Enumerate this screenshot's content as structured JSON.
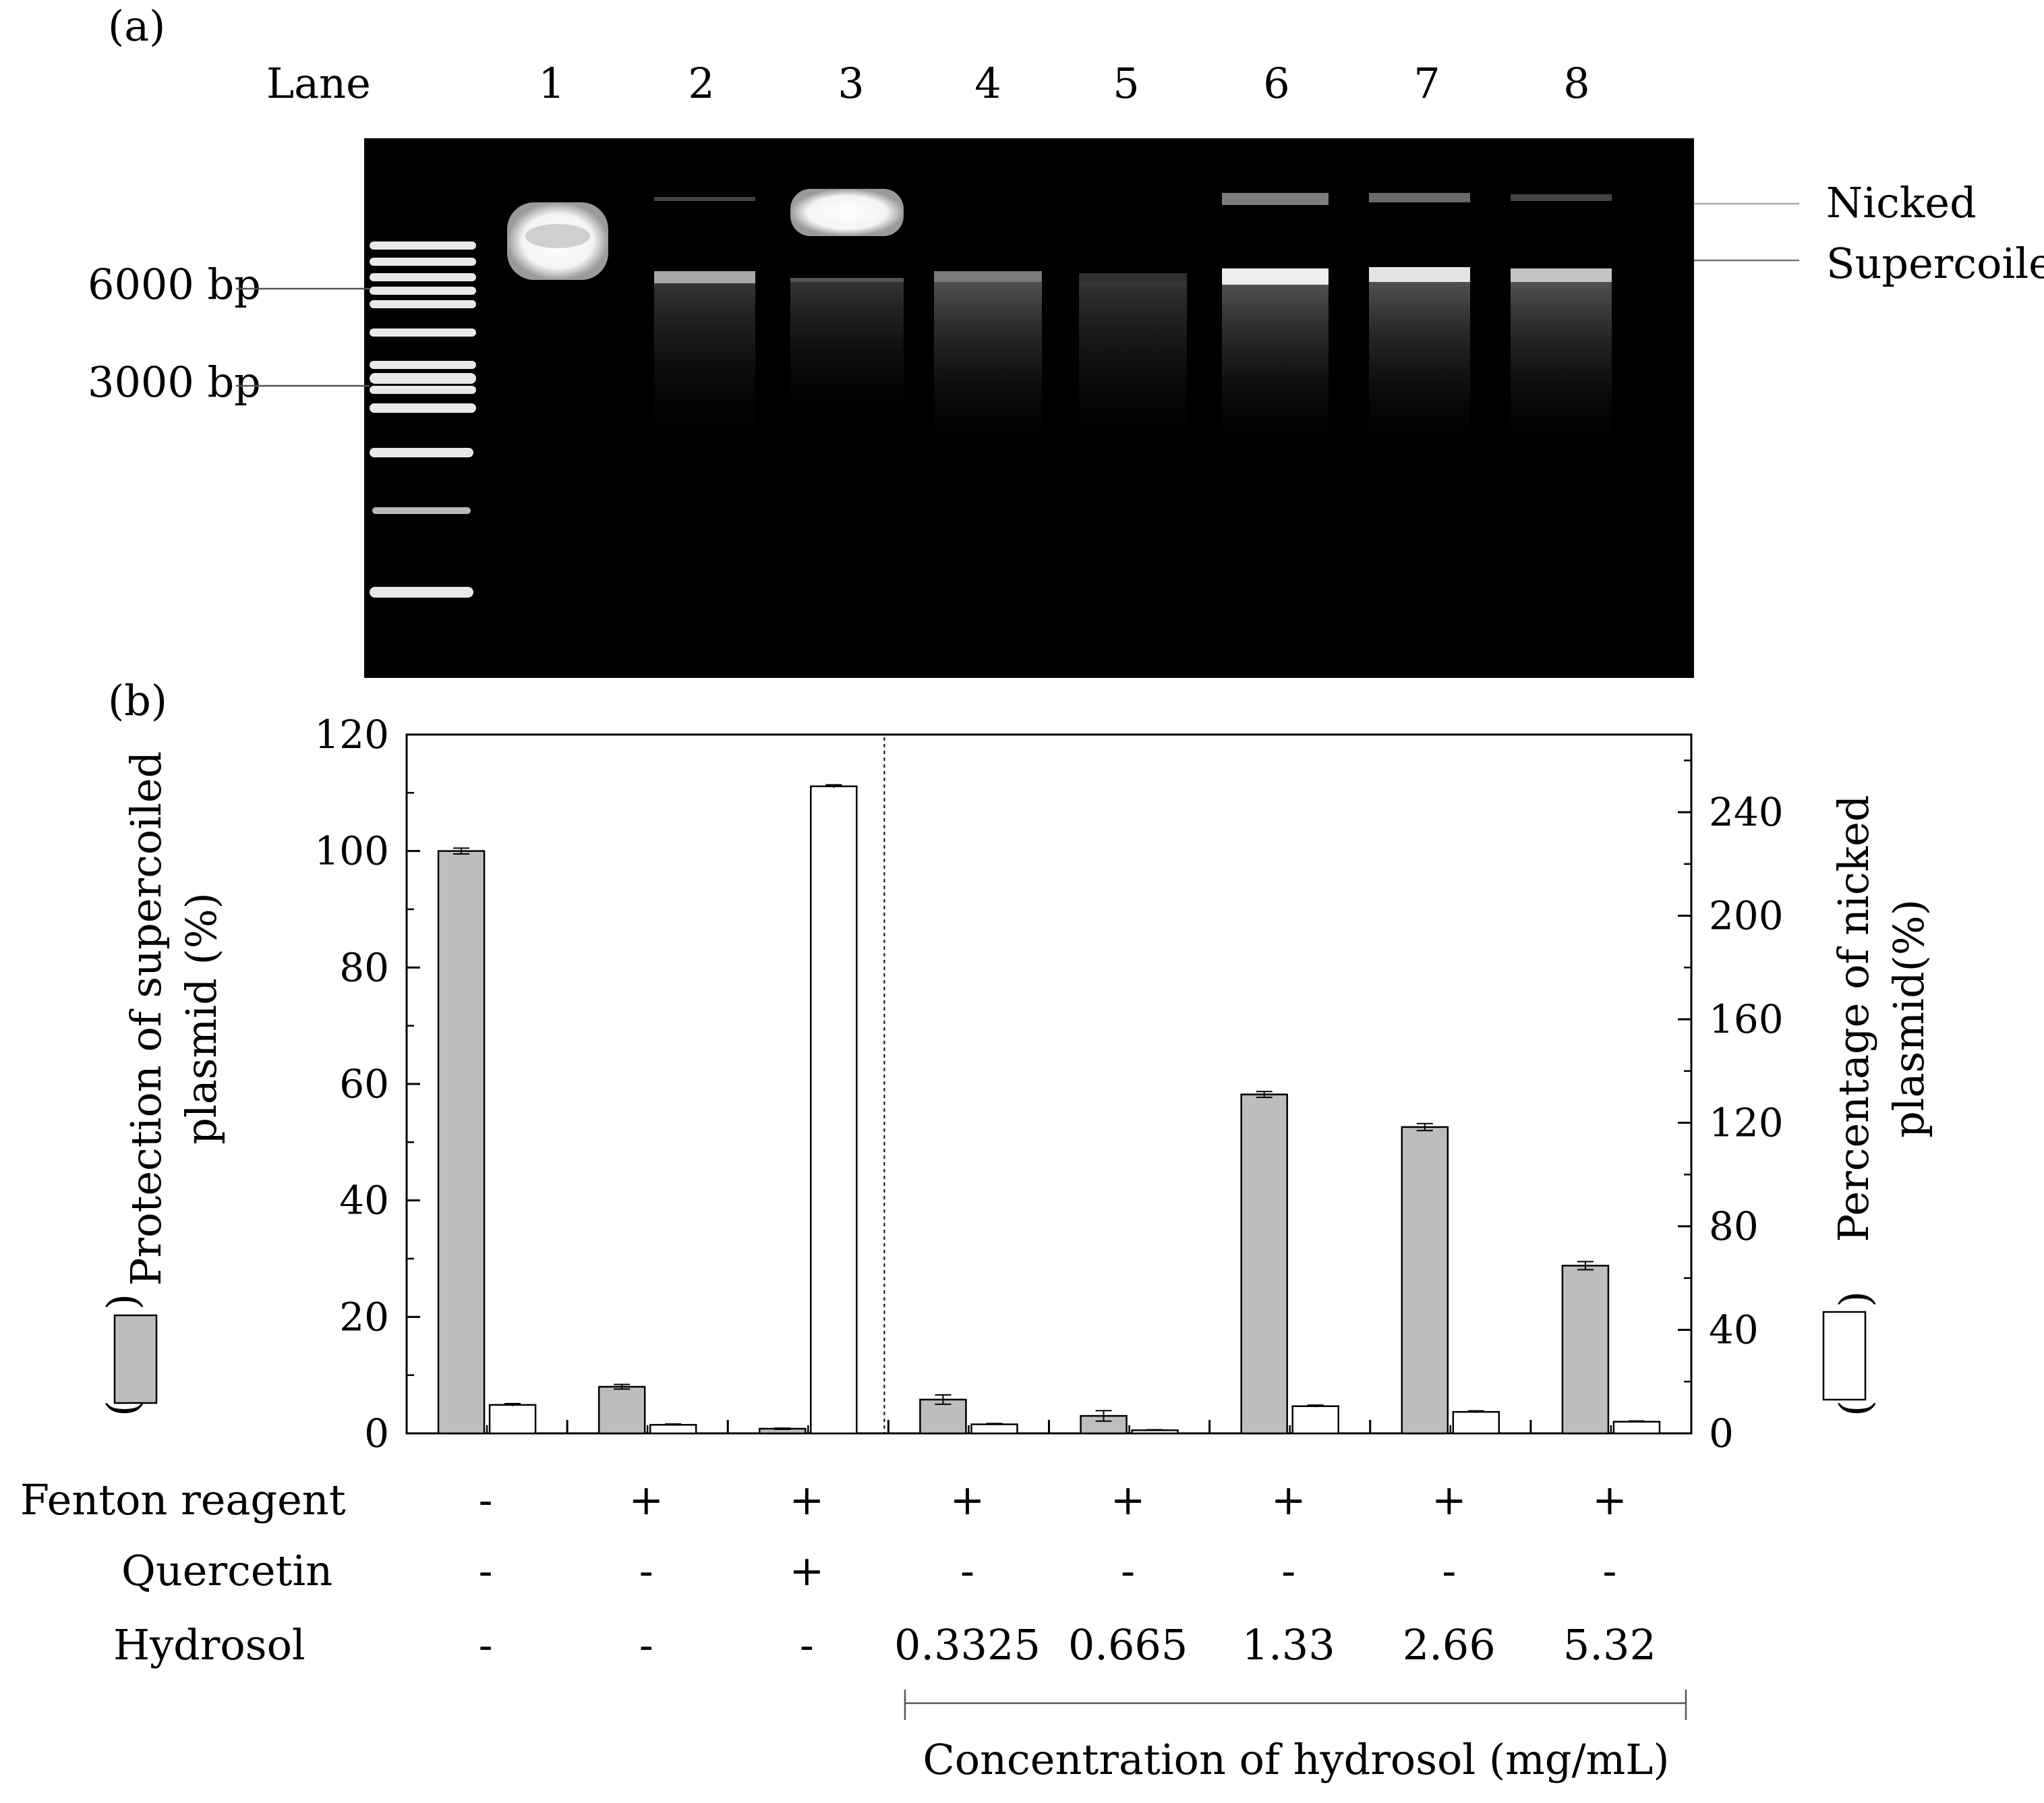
{
  "panel_a": {
    "label": "(a)",
    "lane_header": "Lane",
    "lanes": [
      "1",
      "2",
      "3",
      "4",
      "5",
      "6",
      "7",
      "8"
    ],
    "markers": [
      "6000 bp",
      "3000 bp"
    ],
    "bands": [
      "Nicked",
      "Supercoiled"
    ]
  },
  "panel_b": {
    "label": "(b)",
    "row_labels": [
      "Fenton reagent",
      "Quercetin",
      "Hydrosol"
    ],
    "fenton": [
      "-",
      "+",
      "+",
      "+",
      "+",
      "+",
      "+",
      "+"
    ],
    "quercetin": [
      "-",
      "-",
      "+",
      "-",
      "-",
      "-",
      "-",
      "-"
    ],
    "hydrosol": [
      "-",
      "-",
      "-",
      "0.3325",
      "0.665",
      "1.33",
      "2.66",
      "5.32"
    ],
    "bracket_label": "Concentration of hydrosol (mg/mL)"
  },
  "chart_data": {
    "type": "bar",
    "categories": [
      "1",
      "2",
      "3",
      "4",
      "5",
      "6",
      "7",
      "8"
    ],
    "series": [
      {
        "name": "Protection of supercoiled plasmid (%)",
        "axis": "left",
        "color": "#bdbdbd",
        "values": [
          100,
          8,
          0.8,
          5.8,
          3,
          58.2,
          52.6,
          28.8
        ],
        "errors": [
          0.5,
          0.4,
          0.1,
          0.8,
          0.9,
          0.5,
          0.6,
          0.7
        ]
      },
      {
        "name": "Percentage of nicked plasmid(%)",
        "axis": "right",
        "color": "#ffffff",
        "values": [
          11,
          3.3,
          250,
          3.5,
          1.2,
          10.5,
          8.3,
          4.5
        ],
        "errors": [
          0.5,
          0.3,
          0.6,
          0.3,
          0.2,
          0.4,
          0.4,
          0.3
        ]
      }
    ],
    "ylabel_left": [
      "Protection of supercoiled",
      "plasmid (%)"
    ],
    "ylabel_right": [
      "Percentage of nicked",
      "plasmid(%)"
    ],
    "ylim_left": [
      0,
      120
    ],
    "ylim_right": [
      0,
      270
    ],
    "yticks_left": [
      0,
      20,
      40,
      60,
      80,
      100,
      120
    ],
    "yticks_right": [
      0,
      40,
      80,
      120,
      160,
      200,
      240
    ],
    "divider_after_category": "3"
  }
}
